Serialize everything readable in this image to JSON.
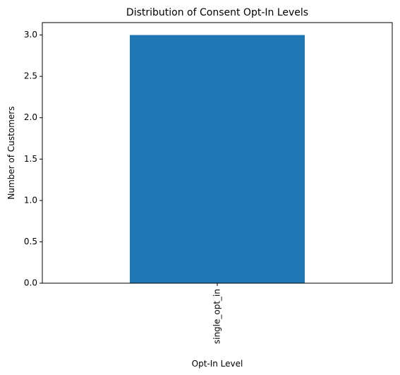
{
  "chart_data": {
    "type": "bar",
    "title": "Distribution of Consent Opt-In Levels",
    "xlabel": "Opt-In Level",
    "ylabel": "Number of Customers",
    "categories": [
      "single_opt_in"
    ],
    "values": [
      3
    ],
    "ylim": [
      0,
      3.15
    ],
    "yticks": [
      0.0,
      0.5,
      1.0,
      1.5,
      2.0,
      2.5,
      3.0
    ],
    "ytick_labels": [
      "0.0",
      "0.5",
      "1.0",
      "1.5",
      "2.0",
      "2.5",
      "3.0"
    ],
    "bar_color": "#1f77b4",
    "grid": false,
    "legend": "none"
  }
}
